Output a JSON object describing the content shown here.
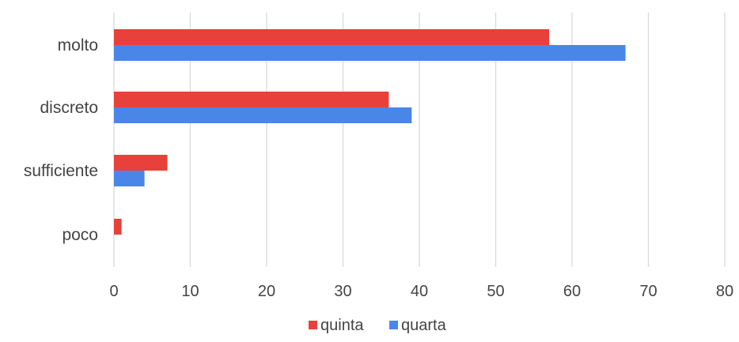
{
  "chart_data": {
    "type": "bar",
    "orientation": "horizontal",
    "title": "",
    "xlabel": "",
    "ylabel": "",
    "categories": [
      "molto",
      "discreto",
      "sufficiente",
      "poco"
    ],
    "series": [
      {
        "name": "quinta",
        "color": "#e8403a",
        "values": [
          57,
          36,
          7,
          1
        ]
      },
      {
        "name": "quarta",
        "color": "#4a86e8",
        "values": [
          67,
          39,
          4,
          0
        ]
      }
    ],
    "xlim": [
      0,
      80
    ],
    "xticks": [
      "0",
      "10",
      "20",
      "30",
      "40",
      "50",
      "60",
      "70",
      "80"
    ],
    "grid": "vertical",
    "legend_position": "bottom"
  }
}
